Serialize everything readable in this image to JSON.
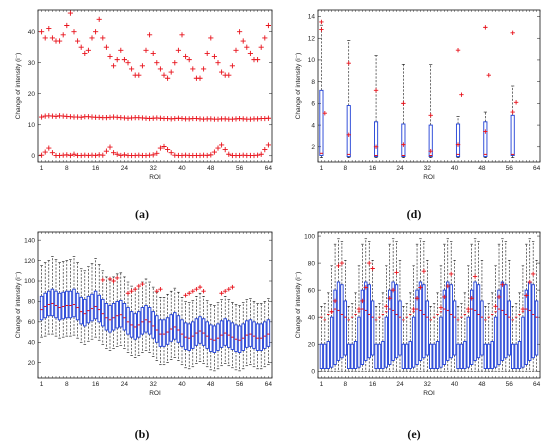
{
  "chart_data": [
    {
      "id": "a",
      "panel_label": "(a)",
      "type": "scatter",
      "xlabel": "ROI",
      "ylabel": "Change of intensity (i⁻)",
      "xlim": [
        0,
        65
      ],
      "ylim": [
        -2,
        47
      ],
      "xticks": [
        1,
        8,
        16,
        24,
        32,
        40,
        48,
        56,
        64
      ],
      "yticks": [
        0,
        10,
        20,
        30,
        40
      ],
      "marker": "+",
      "color": "#e8111a",
      "series": [
        {
          "values": [
            40,
            38,
            41,
            38,
            37,
            37,
            39,
            42,
            46,
            40,
            37,
            35,
            33,
            34,
            38,
            40,
            44,
            38,
            35,
            32,
            29,
            31,
            34,
            31,
            30,
            28,
            26,
            26,
            29,
            34,
            39,
            33,
            30,
            28,
            26,
            25,
            27,
            30,
            34,
            39,
            32,
            31,
            28,
            25,
            25,
            28,
            33,
            38,
            32,
            30,
            27,
            26,
            26,
            29,
            34,
            40,
            37,
            35,
            33,
            31,
            31,
            35,
            38,
            42
          ]
        },
        {
          "values": [
            12.5,
            12.8,
            12.9,
            12.8,
            12.7,
            12.9,
            12.8,
            12.7,
            12.6,
            12.5,
            12.5,
            12.4,
            12.6,
            12.6,
            12.5,
            12.4,
            12.4,
            12.3,
            12.3,
            12.4,
            12.5,
            12.4,
            12.3,
            12.2,
            12.1,
            12.2,
            12.3,
            12.3,
            12.2,
            12.1,
            12.0,
            12.1,
            12.2,
            12.1,
            12.0,
            12.0,
            11.9,
            12.0,
            12.1,
            12.0,
            11.9,
            11.9,
            12.0,
            12.0,
            11.9,
            11.8,
            11.9,
            11.9,
            11.8,
            11.8,
            11.9,
            11.9,
            11.8,
            11.8,
            11.9,
            12.0,
            11.9,
            11.8,
            11.8,
            11.9,
            11.9,
            12.0,
            12.0,
            12.1
          ]
        },
        {
          "values": [
            0.2,
            1.2,
            2.5,
            1.0,
            0.1,
            0.1,
            0.2,
            0.3,
            0.1,
            0.5,
            0.1,
            0.1,
            0.2,
            0.1,
            0.2,
            0.1,
            0.3,
            0.2,
            1.5,
            2.8,
            1.0,
            0.5,
            0.1,
            0.3,
            0.1,
            0.1,
            0.1,
            0.2,
            0.1,
            0.1,
            0.2,
            0.3,
            0.8,
            2.5,
            3.0,
            2.0,
            1.0,
            0.2,
            0.1,
            0.1,
            0.2,
            0.1,
            0.1,
            0.1,
            0.1,
            0.2,
            0.1,
            0.3,
            1.2,
            2.5,
            3.5,
            2.0,
            0.5,
            0.1,
            0.1,
            0.1,
            0.2,
            0.1,
            0.1,
            0.1,
            0.2,
            0.5,
            2.0,
            3.5
          ]
        }
      ]
    },
    {
      "id": "b",
      "panel_label": "(b)",
      "type": "box",
      "xlabel": "ROI",
      "ylabel": "Change of intensity (i⁻)",
      "xlim": [
        0,
        65
      ],
      "ylim": [
        5,
        148
      ],
      "xticks": [
        1,
        8,
        16,
        24,
        32,
        40,
        48,
        56,
        64
      ],
      "yticks": [
        20,
        40,
        60,
        80,
        100,
        120,
        140
      ],
      "box_color": "#1f3fd6",
      "median_color": "#e8111a",
      "outlier_color": "#e8111a",
      "whisker_color": "#111111",
      "medians": [
        72,
        75,
        77,
        78,
        76,
        74,
        75,
        76,
        76,
        77,
        74,
        70,
        68,
        71,
        73,
        75,
        72,
        68,
        64,
        62,
        64,
        66,
        67,
        64,
        60,
        57,
        55,
        57,
        60,
        62,
        60,
        56,
        52,
        48,
        48,
        50,
        53,
        55,
        52,
        48,
        45,
        44,
        46,
        49,
        51,
        49,
        46,
        43,
        42,
        44,
        47,
        49,
        47,
        45,
        43,
        42,
        44,
        47,
        48,
        46,
        44,
        44,
        46,
        48
      ],
      "q1": [
        62,
        64,
        66,
        66,
        64,
        62,
        63,
        64,
        64,
        65,
        62,
        58,
        56,
        59,
        61,
        63,
        60,
        56,
        52,
        50,
        52,
        54,
        55,
        52,
        48,
        45,
        43,
        45,
        48,
        50,
        48,
        44,
        40,
        36,
        36,
        38,
        41,
        43,
        40,
        36,
        33,
        32,
        34,
        37,
        39,
        37,
        34,
        31,
        30,
        32,
        35,
        37,
        35,
        33,
        31,
        30,
        32,
        35,
        36,
        34,
        32,
        32,
        34,
        36
      ],
      "q3": [
        85,
        88,
        90,
        92,
        90,
        88,
        89,
        90,
        90,
        92,
        88,
        84,
        82,
        85,
        87,
        90,
        86,
        82,
        78,
        76,
        78,
        80,
        81,
        78,
        74,
        70,
        68,
        70,
        74,
        76,
        74,
        70,
        66,
        62,
        62,
        64,
        67,
        69,
        66,
        62,
        59,
        58,
        60,
        63,
        65,
        63,
        60,
        57,
        56,
        58,
        61,
        63,
        61,
        59,
        57,
        56,
        58,
        61,
        62,
        60,
        58,
        58,
        60,
        62
      ],
      "whisker_low": [
        45,
        46,
        48,
        48,
        46,
        44,
        45,
        46,
        46,
        47,
        44,
        40,
        38,
        41,
        43,
        45,
        42,
        38,
        34,
        32,
        34,
        36,
        37,
        34,
        30,
        27,
        25,
        27,
        30,
        32,
        30,
        26,
        22,
        18,
        18,
        20,
        23,
        25,
        22,
        18,
        15,
        14,
        16,
        19,
        21,
        19,
        16,
        13,
        12,
        14,
        17,
        19,
        17,
        15,
        13,
        12,
        14,
        17,
        18,
        16,
        14,
        14,
        16,
        18
      ],
      "whisker_high": [
        115,
        118,
        120,
        124,
        121,
        118,
        119,
        120,
        121,
        124,
        118,
        112,
        110,
        114,
        117,
        122,
        116,
        110,
        104,
        101,
        104,
        107,
        108,
        104,
        99,
        95,
        92,
        95,
        99,
        102,
        99,
        94,
        89,
        84,
        84,
        87,
        90,
        93,
        89,
        84,
        80,
        79,
        81,
        85,
        88,
        85,
        81,
        77,
        76,
        79,
        82,
        85,
        82,
        79,
        77,
        76,
        79,
        82,
        83,
        80,
        78,
        78,
        80,
        83
      ],
      "outliers": [
        [
          18,
          101
        ],
        [
          20,
          102
        ],
        [
          21,
          100
        ],
        [
          22,
          103
        ],
        [
          25,
          88
        ],
        [
          26,
          90
        ],
        [
          27,
          92
        ],
        [
          28,
          95
        ],
        [
          29,
          97
        ],
        [
          33,
          90
        ],
        [
          34,
          92
        ],
        [
          41,
          86
        ],
        [
          42,
          88
        ],
        [
          43,
          90
        ],
        [
          44,
          92
        ],
        [
          45,
          94
        ],
        [
          46,
          90
        ],
        [
          51,
          88
        ],
        [
          52,
          90
        ],
        [
          53,
          92
        ],
        [
          54,
          94
        ]
      ]
    },
    {
      "id": "d",
      "panel_label": "(d)",
      "type": "box",
      "xlabel": "ROI",
      "ylabel": "Change of intensity (i⁻)",
      "xlim": [
        0,
        65
      ],
      "ylim": [
        0.6,
        14.6
      ],
      "xticks": [
        1,
        8,
        16,
        24,
        32,
        40,
        48,
        56,
        64
      ],
      "yticks": [
        2,
        4,
        6,
        8,
        10,
        12,
        14
      ],
      "box_color": "#1f3fd6",
      "median_color": "#e8111a",
      "outlier_color": "#e8111a",
      "whisker_color": "#111111",
      "positions": [
        1,
        9,
        17,
        25,
        33,
        41,
        49,
        57
      ],
      "q1": [
        1.2,
        1.1,
        1.1,
        1.1,
        1.1,
        1.1,
        1.1,
        1.2
      ],
      "q3": [
        7.2,
        5.8,
        4.3,
        4.1,
        4.0,
        4.1,
        4.3,
        4.9
      ],
      "medians": [
        1.4,
        1.3,
        1.2,
        1.2,
        1.2,
        1.3,
        1.3,
        1.3
      ],
      "whisker_low": [
        1.0,
        1.0,
        1.0,
        1.0,
        1.0,
        1.0,
        1.0,
        1.0
      ],
      "whisker_high": [
        13.2,
        11.8,
        10.4,
        9.6,
        9.6,
        4.8,
        5.2,
        7.6
      ],
      "outliers": [
        [
          1,
          13.5
        ],
        [
          1,
          12.8
        ],
        [
          2,
          5.1
        ],
        [
          9,
          9.7
        ],
        [
          9,
          3.1
        ],
        [
          17,
          7.2
        ],
        [
          17,
          2.0
        ],
        [
          25,
          6.0
        ],
        [
          25,
          2.2
        ],
        [
          33,
          4.9
        ],
        [
          33,
          1.6
        ],
        [
          41,
          10.9
        ],
        [
          41,
          2.2
        ],
        [
          42,
          6.8
        ],
        [
          49,
          13.0
        ],
        [
          49,
          3.4
        ],
        [
          50,
          8.6
        ],
        [
          57,
          12.5
        ],
        [
          57,
          5.2
        ],
        [
          58,
          6.1
        ]
      ]
    },
    {
      "id": "e",
      "panel_label": "(e)",
      "type": "box",
      "xlabel": "ROI",
      "ylabel": "Change of intensity (i⁻)",
      "xlim": [
        0,
        65
      ],
      "ylim": [
        -5,
        103
      ],
      "xticks": [
        1,
        8,
        16,
        24,
        32,
        40,
        48,
        56,
        64
      ],
      "yticks": [
        0,
        20,
        40,
        60,
        80,
        100
      ],
      "box_color": "#1f3fd6",
      "median_color": "#e8111a",
      "outlier_color": "#e8111a",
      "whisker_color": "#111111",
      "medians": [
        40,
        38,
        42,
        44,
        46,
        45,
        42,
        40,
        38,
        40,
        42,
        44,
        46,
        45,
        42,
        40,
        38,
        40,
        42,
        44,
        46,
        45,
        42,
        40,
        38,
        40,
        42,
        44,
        46,
        45,
        42,
        40,
        38,
        40,
        42,
        44,
        46,
        45,
        42,
        40,
        38,
        40,
        42,
        44,
        46,
        45,
        42,
        40,
        38,
        40,
        42,
        44,
        46,
        45,
        42,
        40,
        38,
        40,
        42,
        44,
        46,
        45,
        42,
        40
      ],
      "q1": [
        2,
        2,
        2,
        3,
        5,
        8,
        10,
        12,
        2,
        2,
        2,
        3,
        5,
        8,
        10,
        12,
        2,
        2,
        2,
        3,
        5,
        8,
        10,
        12,
        2,
        2,
        2,
        3,
        5,
        8,
        10,
        12,
        2,
        2,
        2,
        3,
        5,
        8,
        10,
        12,
        2,
        2,
        2,
        3,
        5,
        8,
        10,
        12,
        2,
        2,
        2,
        3,
        5,
        8,
        10,
        12,
        2,
        2,
        2,
        3,
        5,
        8,
        10,
        12
      ],
      "q3": [
        20,
        20,
        22,
        40,
        60,
        66,
        64,
        52,
        20,
        20,
        22,
        40,
        60,
        66,
        64,
        52,
        20,
        20,
        22,
        40,
        60,
        66,
        64,
        52,
        20,
        20,
        22,
        40,
        60,
        66,
        64,
        52,
        20,
        20,
        22,
        40,
        60,
        66,
        64,
        52,
        20,
        20,
        22,
        40,
        60,
        66,
        64,
        52,
        20,
        20,
        22,
        40,
        60,
        66,
        64,
        52,
        20,
        20,
        22,
        40,
        60,
        66,
        64,
        52
      ],
      "whisker_low": [
        0,
        0,
        0,
        0,
        0,
        0,
        0,
        0,
        0,
        0,
        0,
        0,
        0,
        0,
        0,
        0,
        0,
        0,
        0,
        0,
        0,
        0,
        0,
        0,
        0,
        0,
        0,
        0,
        0,
        0,
        0,
        0,
        0,
        0,
        0,
        0,
        0,
        0,
        0,
        0,
        0,
        0,
        0,
        0,
        0,
        0,
        0,
        0,
        0,
        0,
        0,
        0,
        0,
        0,
        0,
        0,
        0,
        0,
        0,
        0,
        0,
        0,
        0,
        0
      ],
      "whisker_high": [
        48,
        50,
        58,
        78,
        94,
        98,
        96,
        82,
        48,
        50,
        58,
        78,
        94,
        98,
        96,
        82,
        48,
        50,
        58,
        78,
        94,
        98,
        96,
        82,
        48,
        50,
        58,
        78,
        94,
        98,
        96,
        82,
        48,
        50,
        58,
        78,
        94,
        98,
        96,
        82,
        48,
        50,
        58,
        78,
        94,
        98,
        96,
        82,
        48,
        50,
        58,
        78,
        94,
        98,
        96,
        82,
        48,
        50,
        58,
        78,
        94,
        98,
        96,
        82
      ],
      "outliers": [
        [
          4,
          44
        ],
        [
          5,
          52
        ],
        [
          6,
          78
        ],
        [
          7,
          80
        ],
        [
          12,
          46
        ],
        [
          13,
          52
        ],
        [
          14,
          62
        ],
        [
          15,
          80
        ],
        [
          16,
          76
        ],
        [
          20,
          48
        ],
        [
          21,
          54
        ],
        [
          22,
          60
        ],
        [
          23,
          73
        ],
        [
          28,
          46
        ],
        [
          29,
          54
        ],
        [
          30,
          62
        ],
        [
          31,
          74
        ],
        [
          36,
          47
        ],
        [
          37,
          55
        ],
        [
          38,
          63
        ],
        [
          39,
          72
        ],
        [
          44,
          46
        ],
        [
          45,
          54
        ],
        [
          46,
          70
        ],
        [
          52,
          48
        ],
        [
          53,
          55
        ],
        [
          54,
          64
        ],
        [
          60,
          46
        ],
        [
          61,
          56
        ],
        [
          62,
          66
        ],
        [
          63,
          72
        ]
      ]
    }
  ]
}
